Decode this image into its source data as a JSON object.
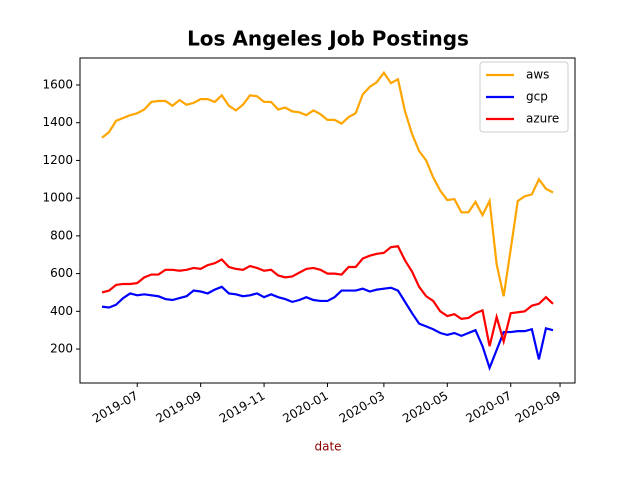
{
  "chart_data": {
    "type": "line",
    "title": "Los Angeles Job Postings",
    "x_label": "date",
    "x": [
      "2019-05",
      "2019-06",
      "2019-06",
      "2019-06",
      "2019-06",
      "2019-07",
      "2019-07",
      "2019-07",
      "2019-07",
      "2019-07",
      "2019-08",
      "2019-08",
      "2019-08",
      "2019-08",
      "2019-09",
      "2019-09",
      "2019-09",
      "2019-09",
      "2019-09",
      "2019-10",
      "2019-10",
      "2019-10",
      "2019-10",
      "2019-11",
      "2019-11",
      "2019-11",
      "2019-11",
      "2019-12",
      "2019-12",
      "2019-12",
      "2019-12",
      "2019-12",
      "2020-01",
      "2020-01",
      "2020-01",
      "2020-01",
      "2020-02",
      "2020-02",
      "2020-02",
      "2020-02",
      "2020-03",
      "2020-03",
      "2020-03",
      "2020-03",
      "2020-03",
      "2020-04",
      "2020-04",
      "2020-04",
      "2020-04",
      "2020-05",
      "2020-05",
      "2020-05",
      "2020-05",
      "2020-06",
      "2020-06",
      "2020-06",
      "2020-06",
      "2020-06",
      "2020-07",
      "2020-07",
      "2020-07",
      "2020-07",
      "2020-08",
      "2020-08",
      "2020-08"
    ],
    "series": [
      {
        "name": "aws",
        "color": "#ffa500",
        "values": [
          1320,
          1350,
          1410,
          1425,
          1440,
          1450,
          1470,
          1510,
          1515,
          1515,
          1490,
          1520,
          1495,
          1505,
          1525,
          1525,
          1510,
          1545,
          1490,
          1465,
          1495,
          1545,
          1540,
          1510,
          1510,
          1470,
          1480,
          1460,
          1455,
          1440,
          1465,
          1445,
          1415,
          1415,
          1395,
          1430,
          1450,
          1550,
          1590,
          1615,
          1665,
          1610,
          1630,
          1460,
          1340,
          1250,
          1200,
          1110,
          1040,
          990,
          995,
          925,
          925,
          980,
          910,
          985,
          650,
          480,
          730,
          985,
          1010,
          1020,
          1100,
          1050,
          1030
        ]
      },
      {
        "name": "gcp",
        "color": "#0000ff",
        "values": [
          425,
          420,
          435,
          470,
          495,
          485,
          490,
          485,
          480,
          465,
          460,
          470,
          480,
          510,
          505,
          495,
          515,
          530,
          495,
          490,
          480,
          485,
          495,
          475,
          490,
          475,
          465,
          450,
          460,
          475,
          460,
          455,
          455,
          475,
          510,
          510,
          510,
          520,
          505,
          515,
          520,
          525,
          510,
          450,
          390,
          335,
          320,
          305,
          285,
          275,
          285,
          270,
          285,
          300,
          215,
          100,
          195,
          290,
          290,
          295,
          295,
          305,
          145,
          310,
          300
        ]
      },
      {
        "name": "azure",
        "color": "#ff0000",
        "values": [
          500,
          510,
          540,
          545,
          545,
          550,
          580,
          595,
          595,
          620,
          620,
          615,
          620,
          630,
          625,
          645,
          655,
          675,
          635,
          625,
          620,
          640,
          630,
          615,
          620,
          590,
          580,
          585,
          605,
          625,
          630,
          620,
          600,
          600,
          595,
          635,
          635,
          680,
          695,
          705,
          710,
          740,
          745,
          670,
          610,
          530,
          480,
          455,
          400,
          375,
          385,
          360,
          365,
          390,
          405,
          215,
          370,
          240,
          390,
          395,
          400,
          430,
          440,
          475,
          440
        ]
      }
    ],
    "xticks": [
      "2019-07",
      "2019-09",
      "2019-11",
      "2020-01",
      "2020-03",
      "2020-05",
      "2020-07",
      "2020-09"
    ],
    "ylim": [
      20,
      1743
    ],
    "yticks": [
      200,
      400,
      600,
      800,
      1000,
      1200,
      1400,
      1600
    ],
    "legend": "upper right"
  }
}
